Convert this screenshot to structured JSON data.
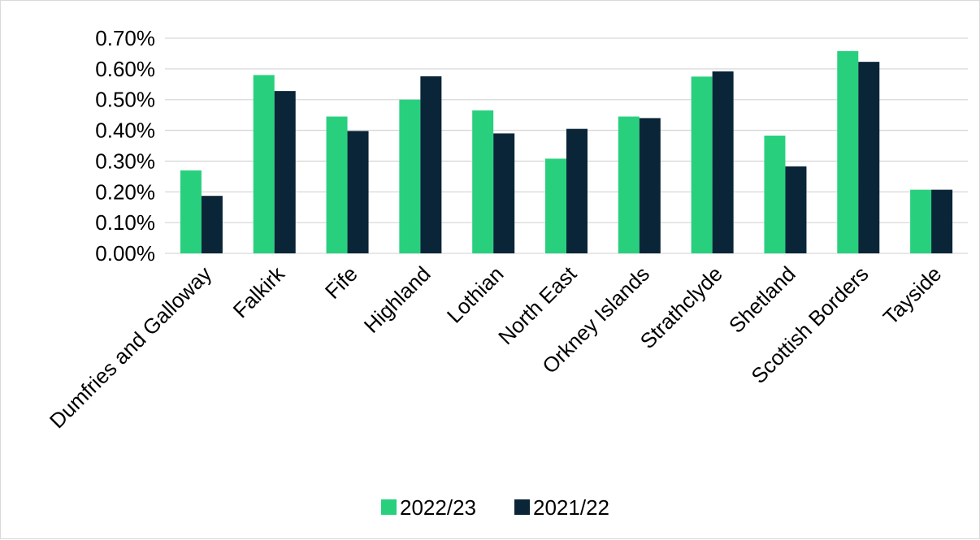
{
  "chart_data": {
    "type": "bar",
    "categories": [
      "Dumfries and Galloway",
      "Falkirk",
      "Fife",
      "Highland",
      "Lothian",
      "North East",
      "Orkney Islands",
      "Strathclyde",
      "Shetland",
      "Scottish Borders",
      "Tayside"
    ],
    "series": [
      {
        "name": "2022/23",
        "color": "#28d07e",
        "values": [
          0.27,
          0.58,
          0.445,
          0.5,
          0.465,
          0.308,
          0.445,
          0.575,
          0.383,
          0.658,
          0.207
        ]
      },
      {
        "name": "2021/22",
        "color": "#0a2538",
        "values": [
          0.187,
          0.528,
          0.398,
          0.576,
          0.39,
          0.405,
          0.44,
          0.592,
          0.283,
          0.623,
          0.207
        ]
      }
    ],
    "y_ticks": [
      "0.00%",
      "0.10%",
      "0.20%",
      "0.30%",
      "0.40%",
      "0.50%",
      "0.60%",
      "0.70%"
    ],
    "ylim": [
      0,
      0.7
    ],
    "unit": "%",
    "grid": true,
    "legend_position": "bottom"
  }
}
